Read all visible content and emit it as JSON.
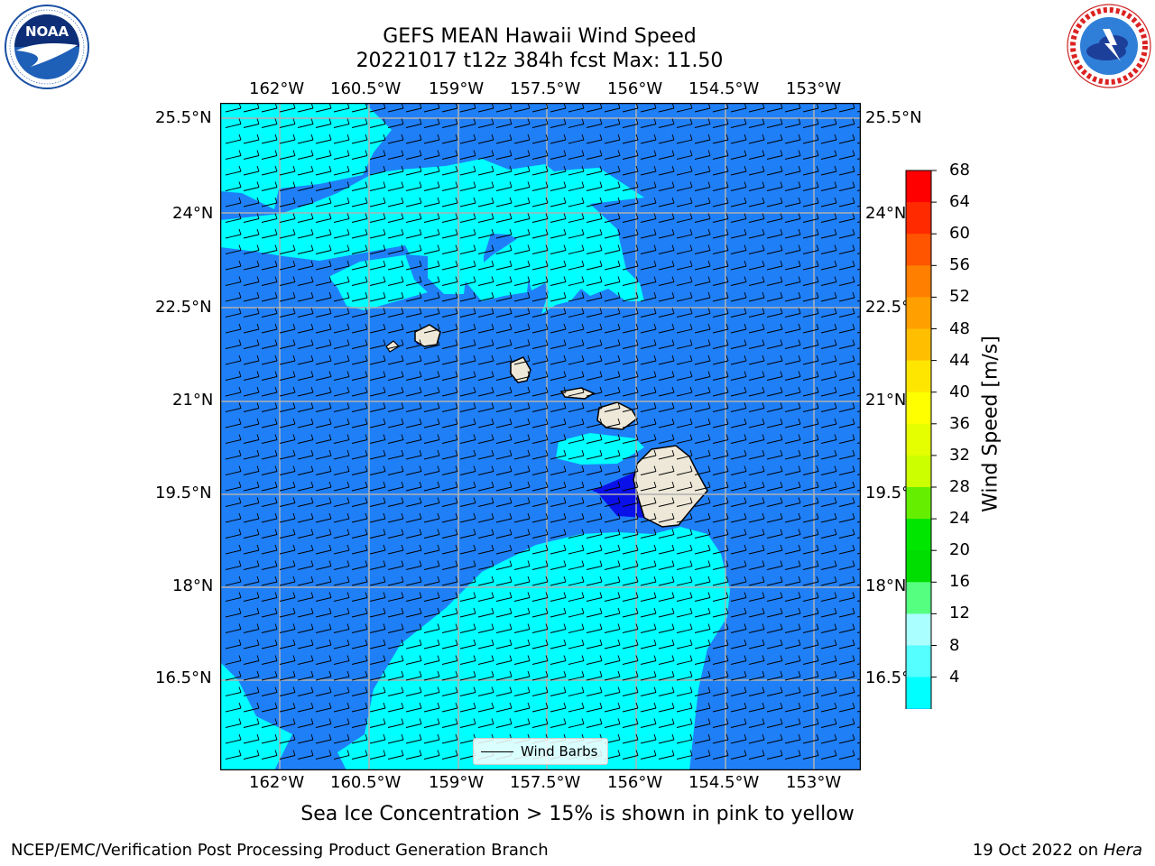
{
  "title": {
    "line1": "GEFS MEAN Hawaii Wind Speed",
    "line2": "20221017 t12z 384h fcst   Max: 11.50"
  },
  "logos": {
    "noaa_text": "NOAA",
    "noaa_ring": "NATIONAL OCEANIC AND ATMOSPHERIC ADMINISTRATION · U.S. DEPARTMENT OF COMMERCE",
    "nws_ring": "NATIONAL WEATHER SERVICE"
  },
  "map": {
    "lon_labels": [
      "162°W",
      "160.5°W",
      "159°W",
      "157.5°W",
      "156°W",
      "154.5°W",
      "153°W"
    ],
    "lat_labels": [
      "25.5°N",
      "24°N",
      "22.5°N",
      "21°N",
      "19.5°N",
      "18°N",
      "16.5°N"
    ],
    "colors": {
      "ocean_4_8": "#1f7ff7",
      "ocean_8_12": "#00ffff",
      "ocean_0_4": "#0a10e8",
      "land": "#ede8d8",
      "grid": "#b0b0b0"
    },
    "legend_label": "Wind Barbs"
  },
  "colorbar": {
    "title": "Wind Speed [m/s]",
    "ticks": [
      "68",
      "64",
      "60",
      "56",
      "52",
      "48",
      "44",
      "40",
      "36",
      "32",
      "28",
      "24",
      "20",
      "16",
      "12",
      "8",
      "4"
    ],
    "colors": [
      "#ff0000",
      "#ff2a00",
      "#ff5500",
      "#ff7f00",
      "#ff9f00",
      "#ffbf00",
      "#ffe600",
      "#ffff00",
      "#e6ff00",
      "#ccff00",
      "#66ee00",
      "#00e600",
      "#00dd00",
      "#55ff7f",
      "#aaffff",
      "#55ffff",
      "#00ffff",
      "#1f7ff7"
    ],
    "under_color": "#0a10e8"
  },
  "caption": "Sea Ice Concentration > 15% is shown in pink to yellow",
  "footer": {
    "left": "NCEP/EMC/Verification Post Processing Product Generation Branch",
    "right_date": "19 Oct 2022 on ",
    "right_host": "Hera"
  }
}
